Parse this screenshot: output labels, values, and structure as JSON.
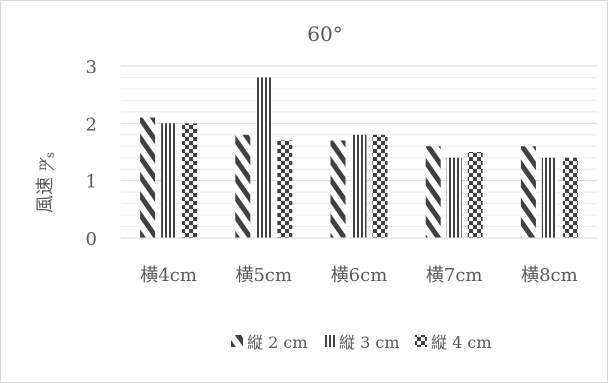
{
  "chart_data": {
    "type": "bar",
    "title": "60°",
    "ylabel": "風速m/s",
    "ylabel_main": "風速",
    "ylabel_unit_num": "m",
    "ylabel_unit_den": "s",
    "categories": [
      "横4cm",
      "横5cm",
      "横6cm",
      "横7cm",
      "横8cm"
    ],
    "yticks": [
      "0",
      "1",
      "2",
      "3"
    ],
    "ylim": [
      0,
      3
    ],
    "grid": true,
    "legend_position": "bottom",
    "series": [
      {
        "name": "縦 2 cm",
        "values": [
          2.1,
          1.8,
          1.7,
          1.6,
          1.6
        ],
        "pattern": "diagonal",
        "color": "#404040"
      },
      {
        "name": "縦 3 cm",
        "values": [
          2.0,
          2.8,
          1.8,
          1.4,
          1.4
        ],
        "pattern": "vertical",
        "color": "#404040"
      },
      {
        "name": "縦 4 cm",
        "values": [
          2.0,
          1.7,
          1.8,
          1.5,
          1.4
        ],
        "pattern": "checker",
        "color": "#404040"
      }
    ]
  }
}
